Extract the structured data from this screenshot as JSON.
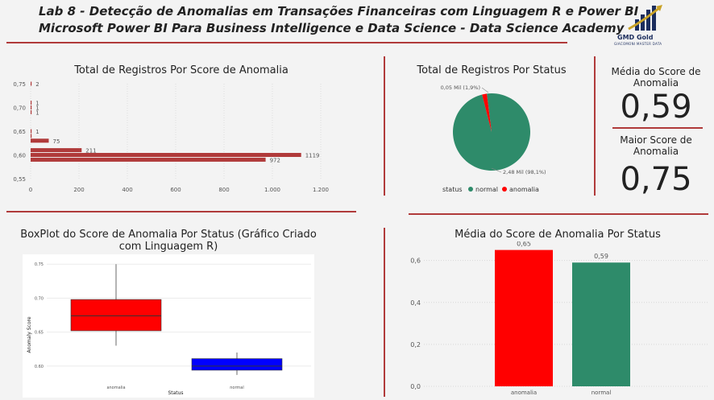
{
  "header": {
    "title_line1": "Lab 8 - Detecção de Anomalias em Transações Financeiras com Linguagem R e Power BI",
    "title_line2": "Microsoft Power BI Para Business Intelligence e Data Science - Data Science Academy",
    "logo_name": "GMD Gold",
    "logo_sub": "GIACOMONI MASTER DATA",
    "logo_icon": "bar-chart-logo-icon"
  },
  "cards": {
    "mean_label": "Média do Score de Anomalia",
    "mean_value": "0,59",
    "max_label": "Maior Score de Anomalia",
    "max_value": "0,75"
  },
  "colors": {
    "accent_red": "#b03a3a",
    "anomalia": "#ff0000",
    "normal": "#2e8b6a",
    "box_normal": "#0000ff"
  },
  "chart_data": [
    {
      "type": "bar",
      "orientation": "horizontal",
      "title": "Total de Registros Por Score de Anomalia",
      "y": [
        0.75,
        0.71,
        0.7,
        0.69,
        0.65,
        0.64,
        0.63,
        0.61,
        0.6,
        0.59
      ],
      "values": [
        2,
        1,
        1,
        1,
        1,
        1,
        75,
        211,
        1119,
        972
      ],
      "data_labels": [
        "2",
        "1",
        "1",
        "1",
        "1",
        "",
        "75",
        "211",
        "1119",
        "972"
      ],
      "yticks": [
        "0,55",
        "0,60",
        "0,65",
        "0,70",
        "0,75"
      ],
      "ytick_values": [
        0.55,
        0.6,
        0.65,
        0.7,
        0.75
      ],
      "xticks": [
        "0",
        "200",
        "400",
        "600",
        "800",
        "1.000",
        "1.200"
      ],
      "xtick_values": [
        0,
        200,
        400,
        600,
        800,
        1000,
        1200
      ],
      "xlim": [
        0,
        1200
      ],
      "ylim": [
        0.55,
        0.75
      ]
    },
    {
      "type": "pie",
      "title": "Total de Registros Por Status",
      "legend_title": "status",
      "legend_position": "bottom",
      "series": [
        {
          "name": "normal",
          "value": 2480,
          "label": "2,48 Mil (98,1%)"
        },
        {
          "name": "anomalia",
          "value": 50,
          "label": "0,05 Mil (1,9%)"
        }
      ]
    },
    {
      "type": "box",
      "title": "BoxPlot do Score de Anomalia Por Status (Gráfico Criado com Linguagem R)",
      "xlabel": "Status",
      "ylabel": "Anomaly Score",
      "categories": [
        "anomalia",
        "normal"
      ],
      "yticks": [
        "0.60",
        "0.65",
        "0.70",
        "0.75"
      ],
      "ytick_values": [
        0.6,
        0.65,
        0.7,
        0.75
      ],
      "ylim": [
        0.575,
        0.755
      ],
      "boxes": [
        {
          "name": "anomalia",
          "min": 0.63,
          "q1": 0.652,
          "median": 0.674,
          "q3": 0.698,
          "max": 0.75
        },
        {
          "name": "normal",
          "min": 0.587,
          "q1": 0.594,
          "median": 0.6,
          "q3": 0.611,
          "max": 0.62
        }
      ]
    },
    {
      "type": "bar",
      "title": "Média do Score de Anomalia Por Status",
      "categories": [
        "anomalia",
        "normal"
      ],
      "values": [
        0.65,
        0.59
      ],
      "data_labels": [
        "0,65",
        "0,59"
      ],
      "yticks": [
        "0,0",
        "0,2",
        "0,4",
        "0,6"
      ],
      "ytick_values": [
        0,
        0.2,
        0.4,
        0.6
      ],
      "ylim": [
        0,
        0.66
      ]
    }
  ]
}
